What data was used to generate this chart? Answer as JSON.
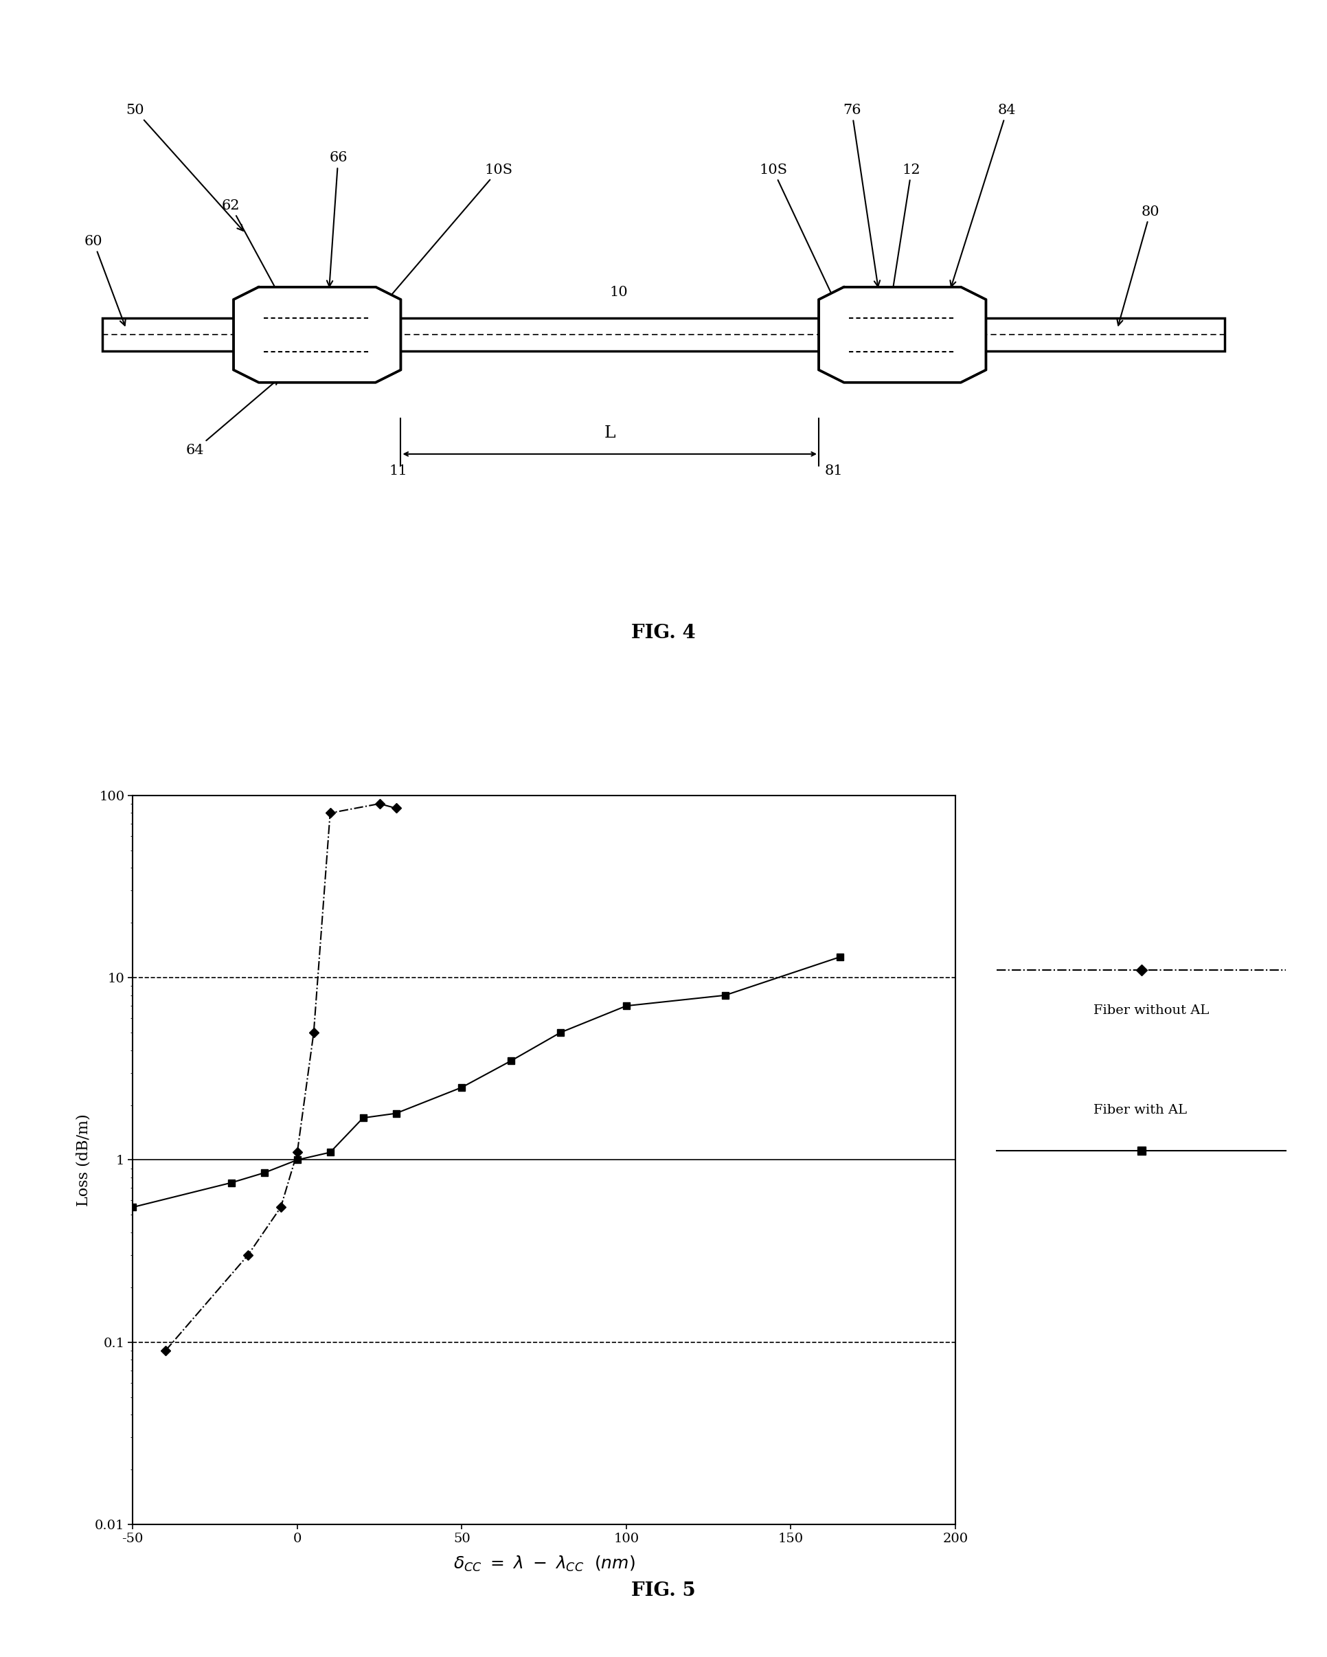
{
  "fig4": {
    "label_50": "50",
    "label_60": "60",
    "label_62": "62",
    "label_64": "64",
    "label_66": "66",
    "label_10S_left": "10S",
    "label_10": "10",
    "label_11": "11",
    "label_L": "L",
    "label_10S_right": "10S",
    "label_12": "12",
    "label_76": "76",
    "label_84": "84",
    "label_80": "80",
    "label_81": "81",
    "fig_label": "FIG. 4"
  },
  "fig5": {
    "series1_name": "Fiber without AL",
    "series2_name": "Fiber with AL",
    "series1_x": [
      -40,
      -15,
      -5,
      0,
      5,
      10,
      25,
      30
    ],
    "series1_y": [
      0.09,
      0.3,
      0.55,
      1.1,
      5.0,
      80.0,
      90.0,
      85.0
    ],
    "series2_x": [
      -50,
      -20,
      -10,
      0,
      10,
      20,
      30,
      50,
      65,
      80,
      100,
      130,
      165
    ],
    "series2_y": [
      0.55,
      0.75,
      0.85,
      1.0,
      1.1,
      1.7,
      1.8,
      2.5,
      3.5,
      5.0,
      7.0,
      8.0,
      13.0
    ],
    "xlabel": "δ_CC = λ  - λ_CC  (nm)",
    "ylabel": "Loss (dB/m)",
    "xlim": [
      -50,
      200
    ],
    "ylim_log": [
      0.01,
      100
    ],
    "xticks": [
      -50,
      0,
      50,
      100,
      150,
      200
    ],
    "fig_label": "FIG. 5",
    "hline_1": 1.0,
    "hline_10": 10.0,
    "hline_01": 0.1,
    "background_color": "#ffffff",
    "line_color": "#000000"
  }
}
